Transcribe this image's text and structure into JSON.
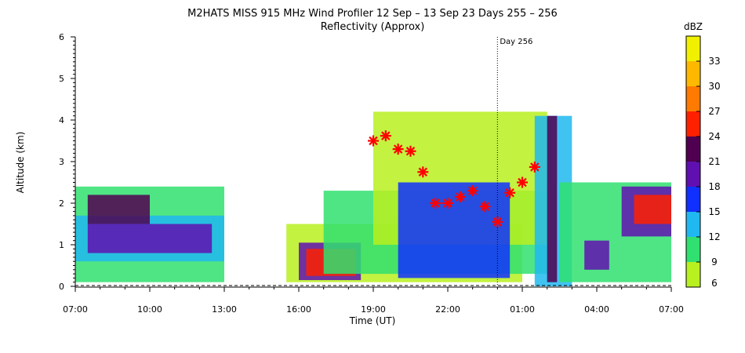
{
  "chart_data": {
    "type": "heatmap",
    "title": "M2HATS MISS 915 MHz Wind Profiler  12 Sep – 13 Sep 23 Days 255 – 256",
    "subtitle": "Reflectivity (Approx)",
    "xlabel": "Time (UT)",
    "ylabel": "Altitude (km)",
    "x_range_hours": [
      0,
      24
    ],
    "x_ticks": [
      {
        "h": 0,
        "label": "07:00"
      },
      {
        "h": 3,
        "label": "10:00"
      },
      {
        "h": 6,
        "label": "13:00"
      },
      {
        "h": 9,
        "label": "16:00"
      },
      {
        "h": 12,
        "label": "19:00"
      },
      {
        "h": 15,
        "label": "22:00"
      },
      {
        "h": 18,
        "label": "01:00"
      },
      {
        "h": 21,
        "label": "04:00"
      },
      {
        "h": 24,
        "label": "07:00"
      }
    ],
    "ylim": [
      0,
      6
    ],
    "y_ticks": [
      "0",
      "1",
      "2",
      "3",
      "4",
      "5",
      "6"
    ],
    "day_marker": {
      "h": 17,
      "label": "Day 256"
    },
    "colorbar": {
      "unit": "dBZ",
      "ticks": [
        "6",
        "9",
        "12",
        "15",
        "18",
        "21",
        "24",
        "27",
        "30",
        "33"
      ],
      "colors": [
        "#b8f020",
        "#30e070",
        "#20b8f0",
        "#1030ff",
        "#6010b0",
        "#500050",
        "#ff2000",
        "#ff7a00",
        "#ffb800",
        "#f0f000"
      ]
    },
    "markers": {
      "symbol": "asterisk",
      "color": "#ff0000",
      "points": [
        {
          "h": 12.0,
          "alt": 3.5
        },
        {
          "h": 12.5,
          "alt": 3.62
        },
        {
          "h": 13.0,
          "alt": 3.3
        },
        {
          "h": 13.5,
          "alt": 3.25
        },
        {
          "h": 14.0,
          "alt": 2.75
        },
        {
          "h": 14.5,
          "alt": 2.0
        },
        {
          "h": 15.0,
          "alt": 2.0
        },
        {
          "h": 15.5,
          "alt": 2.15
        },
        {
          "h": 16.0,
          "alt": 2.3
        },
        {
          "h": 16.5,
          "alt": 1.92
        },
        {
          "h": 17.0,
          "alt": 1.55
        },
        {
          "h": 17.5,
          "alt": 2.25
        },
        {
          "h": 18.0,
          "alt": 2.5
        },
        {
          "h": 18.5,
          "alt": 2.87
        }
      ]
    },
    "reflectivity_patches": [
      {
        "h0": 0.0,
        "h1": 6.0,
        "a0": 0.1,
        "a1": 2.4,
        "dbz": 9
      },
      {
        "h0": 0.0,
        "h1": 6.0,
        "a0": 0.6,
        "a1": 1.7,
        "dbz": 13
      },
      {
        "h0": 0.5,
        "h1": 5.5,
        "a0": 0.8,
        "a1": 1.5,
        "dbz": 18
      },
      {
        "h0": 0.5,
        "h1": 3.0,
        "a0": 1.5,
        "a1": 2.2,
        "dbz": 21
      },
      {
        "h0": 8.5,
        "h1": 18.0,
        "a0": 0.1,
        "a1": 1.5,
        "dbz": 8
      },
      {
        "h0": 9.0,
        "h1": 11.5,
        "a0": 0.15,
        "a1": 1.05,
        "dbz": 18
      },
      {
        "h0": 9.3,
        "h1": 11.3,
        "a0": 0.25,
        "a1": 0.9,
        "dbz": 26
      },
      {
        "h0": 10.0,
        "h1": 19.0,
        "a0": 0.3,
        "a1": 2.3,
        "dbz": 10
      },
      {
        "h0": 12.0,
        "h1": 19.0,
        "a0": 1.0,
        "a1": 4.2,
        "dbz": 8
      },
      {
        "h0": 13.0,
        "h1": 17.5,
        "a0": 0.2,
        "a1": 2.5,
        "dbz": 16
      },
      {
        "h0": 18.5,
        "h1": 20.0,
        "a0": 0.0,
        "a1": 4.1,
        "dbz": 12
      },
      {
        "h0": 19.0,
        "h1": 19.4,
        "a0": 0.1,
        "a1": 4.1,
        "dbz": 22
      },
      {
        "h0": 19.5,
        "h1": 24.0,
        "a0": 0.1,
        "a1": 2.5,
        "dbz": 9
      },
      {
        "h0": 20.5,
        "h1": 21.5,
        "a0": 0.4,
        "a1": 1.1,
        "dbz": 18
      },
      {
        "h0": 22.0,
        "h1": 24.0,
        "a0": 1.2,
        "a1": 2.4,
        "dbz": 18
      },
      {
        "h0": 22.5,
        "h1": 24.0,
        "a0": 1.5,
        "a1": 2.2,
        "dbz": 26
      }
    ]
  }
}
